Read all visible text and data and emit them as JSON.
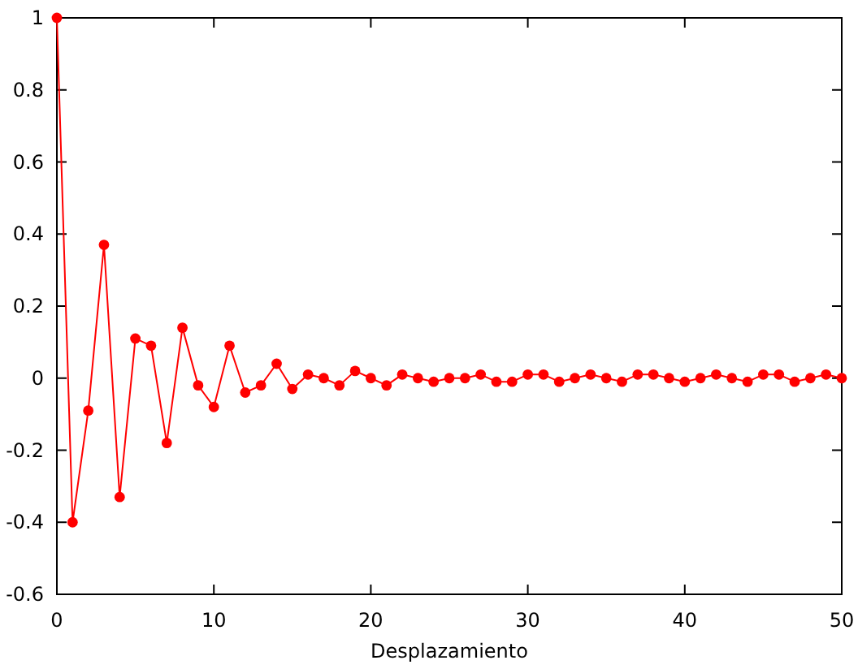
{
  "chart_data": {
    "type": "line",
    "xlabel": "Desplazamiento",
    "x": [
      0,
      1,
      2,
      3,
      4,
      5,
      6,
      7,
      8,
      9,
      10,
      11,
      12,
      13,
      14,
      15,
      16,
      17,
      18,
      19,
      20,
      21,
      22,
      23,
      24,
      25,
      26,
      27,
      28,
      29,
      30,
      31,
      32,
      33,
      34,
      35,
      36,
      37,
      38,
      39,
      40,
      41,
      42,
      43,
      44,
      45,
      46,
      47,
      48,
      49,
      50
    ],
    "series": [
      {
        "color": "#ff0000",
        "values": [
          1,
          -0.4,
          -0.09,
          0.37,
          -0.33,
          0.11,
          0.09,
          -0.18,
          0.14,
          -0.02,
          -0.08,
          0.09,
          -0.04,
          -0.02,
          0.04,
          -0.03,
          0.01,
          0,
          -0.02,
          0.02,
          0,
          -0.02,
          0.01,
          0,
          -0.01,
          0,
          0,
          0.01,
          -0.01,
          -0.01,
          0.01,
          0.01,
          -0.01,
          0,
          0.01,
          0,
          -0.01,
          0.01,
          0.01,
          0,
          -0.01,
          0,
          0.01,
          0,
          -0.01,
          0.01,
          0.01,
          -0.01,
          0,
          0.01,
          0
        ]
      }
    ],
    "xlim": [
      0,
      50
    ],
    "xticks": [
      0,
      10,
      20,
      30,
      40,
      50
    ],
    "ylim": [
      -0.6,
      1
    ],
    "yticks": [
      -0.6,
      -0.4,
      -0.2,
      0,
      0.2,
      0.4,
      0.6,
      0.8,
      1
    ],
    "marker": "circle",
    "line_style": "solid"
  }
}
